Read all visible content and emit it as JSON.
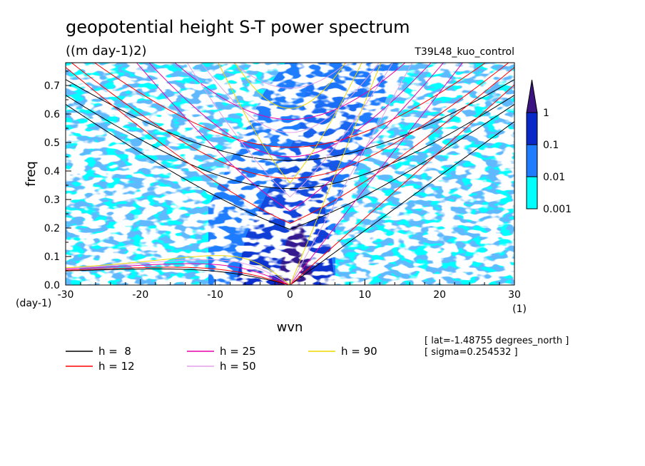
{
  "chart_data": {
    "type": "heatmap",
    "title": "geopotential height S-T power spectrum",
    "subtitle": "((m day-1)2)",
    "run_label": "T39L48_kuo_control",
    "xlabel": "wvn",
    "ylabel": "freq",
    "y_unit_label": "(day-1)",
    "x_unit_label": "(1)",
    "xlim": [
      -30,
      30
    ],
    "ylim": [
      0,
      0.78
    ],
    "x_ticks": [
      -30,
      -20,
      -10,
      0,
      10,
      20,
      30
    ],
    "x_tick_labels": [
      "-30",
      "-20",
      "-10",
      "0",
      "10",
      "20",
      "30"
    ],
    "y_ticks": [
      0,
      0.1,
      0.2,
      0.3,
      0.4,
      0.5,
      0.6,
      0.7
    ],
    "y_tick_labels": [
      "0.0",
      "0.1",
      "0.2",
      "0.3",
      "0.4",
      "0.5",
      "0.6",
      "0.7"
    ],
    "colorbar": {
      "levels": [
        0.001,
        0.01,
        0.1,
        1
      ],
      "labels": [
        "0.001",
        "0.01",
        "0.1",
        "1"
      ],
      "colors": [
        "#00ffff",
        "#1e7cff",
        "#0a28c8",
        "#3c1482"
      ]
    },
    "dispersion_curves": [
      {
        "label": "h =  8",
        "h": 8,
        "color": "#000000"
      },
      {
        "label": "h = 12",
        "h": 12,
        "color": "#ff0000"
      },
      {
        "label": "h = 25",
        "h": 25,
        "color": "#e800a8"
      },
      {
        "label": "h = 50",
        "h": 50,
        "color": "#e0a0e8"
      },
      {
        "label": "h = 90",
        "h": 90,
        "color": "#f0d800"
      }
    ],
    "annotations": [
      "[ lat=-1.48755 degrees_north ]",
      "[ sigma=0.254532 ]"
    ]
  }
}
